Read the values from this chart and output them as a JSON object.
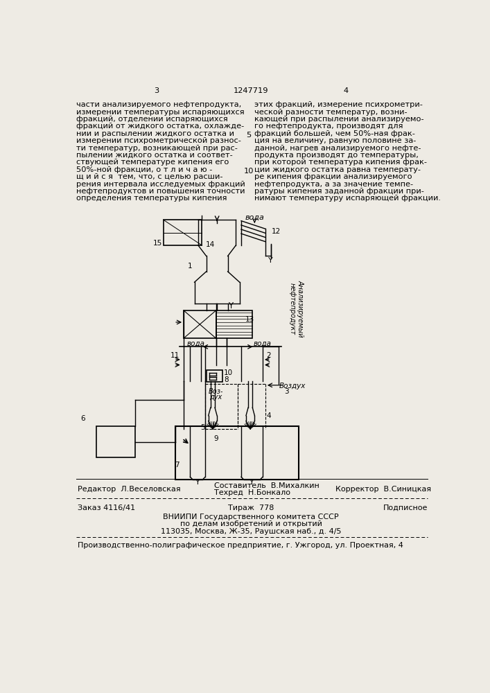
{
  "bg_color": "#eeebe4",
  "page_number_left": "3",
  "page_number_center": "1247719",
  "page_number_right": "4",
  "left_text": [
    "части анализируемого нефтепродукта,",
    "измерении температуры испаряющихся",
    "фракций, отделении испаряющихся",
    "фракций от жидкого остатка, охлажде-",
    "нии и распылении жидкого остатка и",
    "измерении психрометрической разнос-",
    "ти температур, возникающей при рас-",
    "пылении жидкого остатка и соответ-",
    "ствующей температуре кипения его",
    "50%-ной фракции, о т л и ч а ю -",
    "щ и й с я  тем, что, с целью расши-",
    "рения интервала исследуемых фракций",
    "нефтепродуктов и повышения точности",
    "определения температуры кипения"
  ],
  "right_text": [
    "этих фракций, измерение психрометри-",
    "ческой разности температур, возни-",
    "кающей при распылении анализируемо-",
    "го нефтепродукта, производят для",
    "фракций большей, чем 50%-ная фрак-",
    "ция на величину, равную половине за-",
    "данной, нагрев анализируемого нефте-",
    "продукта производят до температуры,",
    "при которой температура кипения фрак-",
    "ции жидкого остатка равна температу-",
    "ре кипения фракции анализируемого",
    "нефтепродукта, а за значение темпе-",
    "ратуры кипения заданной фракции при-",
    "нимают температуру испаряющей фракции."
  ],
  "editor_label": "Редактор  Л.Веселовская",
  "composer_label": "Составитель  В.Михалкин",
  "techred_label": "Техред  Н.Бонкало",
  "corrector_label": "Корректор  В.Синицкая",
  "order_label": "Заказ 4116/41",
  "tirazh_label": "Тираж  778",
  "podpisnoe_label": "Подписное",
  "vniishi_line1": "ВНИИПИ Государственного комитета СССР",
  "vniishi_line2": "по делам изобретений и открытий",
  "vniishi_line3": "113035, Москва, Ж-35, Раушская наб., д. 4/5",
  "factory_line": "Производственно-полиграфическое предприятие, г. Ужгород, ул. Проектная, 4"
}
